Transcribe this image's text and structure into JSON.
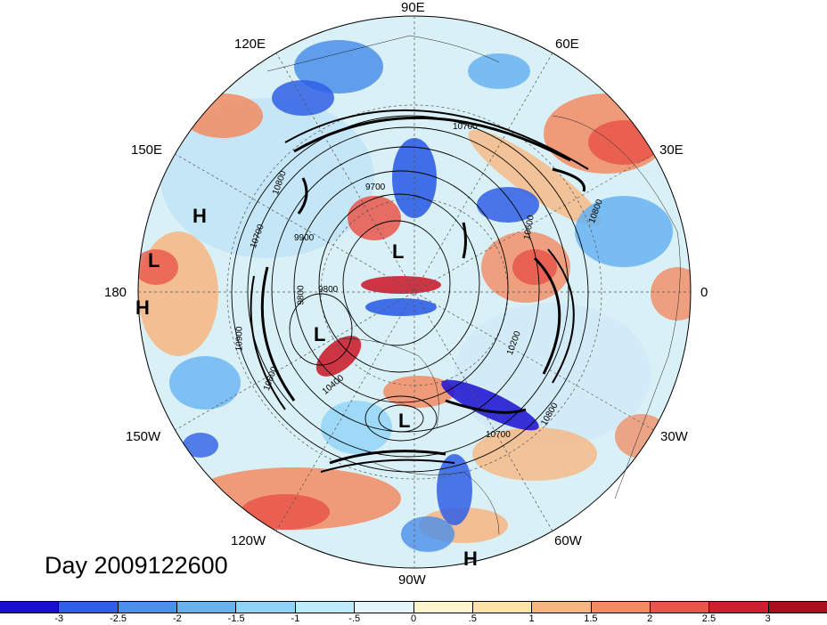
{
  "title": "Day 2009122600",
  "longitude_labels": [
    {
      "key": "90E",
      "text": "90E"
    },
    {
      "key": "60E",
      "text": "60E"
    },
    {
      "key": "30E",
      "text": "30E"
    },
    {
      "key": "0",
      "text": "0"
    },
    {
      "key": "30W",
      "text": "30W"
    },
    {
      "key": "60W",
      "text": "60W"
    },
    {
      "key": "90W",
      "text": "90W"
    },
    {
      "key": "120W",
      "text": "120W"
    },
    {
      "key": "150W",
      "text": "150W"
    },
    {
      "key": "180",
      "text": "180"
    },
    {
      "key": "150E",
      "text": "150E"
    },
    {
      "key": "120E",
      "text": "120E"
    }
  ],
  "pressure_centers": [
    {
      "key": "H-pacific",
      "text": "H"
    },
    {
      "key": "L-dateline",
      "text": "L"
    },
    {
      "key": "H-dateline",
      "text": "H"
    },
    {
      "key": "L-pole",
      "text": "L"
    },
    {
      "key": "L-alaska",
      "text": "L"
    },
    {
      "key": "L-hudson",
      "text": "L"
    },
    {
      "key": "H-south-america",
      "text": "H"
    }
  ],
  "contour_labels": [
    "10700",
    "9700",
    "9900",
    "9800",
    "9800",
    "10400",
    "10600",
    "10800",
    "10700",
    "10600",
    "10200",
    "10700",
    "10800",
    "10800",
    "10900"
  ],
  "colorbar": {
    "colors": [
      "#1a0fd0",
      "#2f5fe6",
      "#4a8fea",
      "#66b3f2",
      "#8fd3f7",
      "#bdebfa",
      "#e4f6fb",
      "#fdf6cc",
      "#fde3a6",
      "#f7b680",
      "#f28b62",
      "#e8564a",
      "#cc2030",
      "#a8101c"
    ],
    "tick_labels": [
      "-3",
      "-2.5",
      "-2",
      "-1.5",
      "-1",
      "-.5",
      "0",
      ".5",
      "1",
      "1.5",
      "2",
      "2.5",
      "3"
    ]
  }
}
